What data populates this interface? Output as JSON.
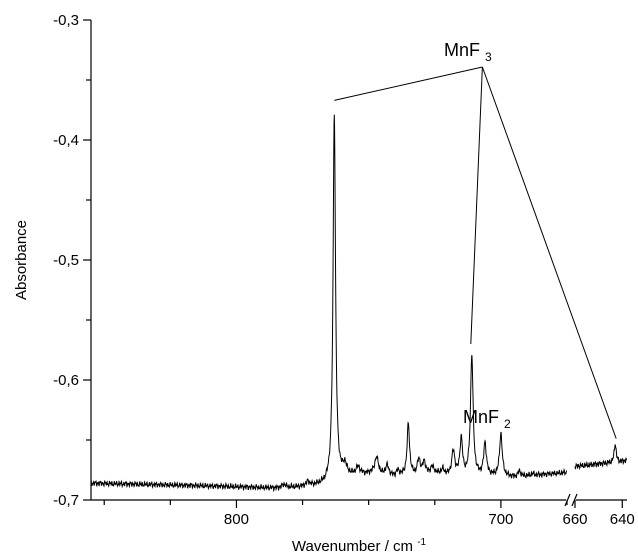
{
  "chart_data": {
    "type": "line",
    "title": "",
    "xlabel": "Wavenumber / cm",
    "xlabel_superscript": "-1",
    "ylabel": "Absorbance",
    "x_reversed": true,
    "x_break": {
      "from": 675,
      "to": 660
    },
    "xlim": [
      855,
      638
    ],
    "ylim": [
      -0.7,
      -0.3
    ],
    "xticks": [
      {
        "value": 800,
        "label": "800"
      },
      {
        "value": 700,
        "label": "700"
      },
      {
        "value": 660,
        "label": "660"
      },
      {
        "value": 640,
        "label": "640"
      }
    ],
    "xticks_minor": [
      850,
      825,
      775,
      750,
      725,
      675
    ],
    "yticks": [
      {
        "value": -0.3,
        "label": "-0,3"
      },
      {
        "value": -0.4,
        "label": "-0,4"
      },
      {
        "value": -0.5,
        "label": "-0,5"
      },
      {
        "value": -0.6,
        "label": "-0,6"
      },
      {
        "value": -0.7,
        "label": "-0,7"
      }
    ],
    "yticks_minor": [
      -0.35,
      -0.45,
      -0.55,
      -0.65
    ],
    "series": [
      {
        "baseline": [
          [
            855,
            -0.686
          ],
          [
            835,
            -0.687
          ],
          [
            815,
            -0.688
          ],
          [
            800,
            -0.689
          ],
          [
            785,
            -0.69
          ],
          [
            775,
            -0.689
          ],
          [
            770,
            -0.688
          ],
          [
            766,
            -0.687
          ],
          [
            763,
            -0.684
          ],
          [
            760,
            -0.681
          ],
          [
            755,
            -0.679
          ],
          [
            750,
            -0.678
          ],
          [
            745,
            -0.68
          ],
          [
            740,
            -0.681
          ],
          [
            735,
            -0.679
          ],
          [
            730,
            -0.681
          ],
          [
            725,
            -0.678
          ],
          [
            720,
            -0.68
          ],
          [
            715,
            -0.681
          ],
          [
            710,
            -0.681
          ],
          [
            705,
            -0.68
          ],
          [
            700,
            -0.68
          ],
          [
            695,
            -0.681
          ],
          [
            690,
            -0.68
          ],
          [
            685,
            -0.679
          ],
          [
            680,
            -0.678
          ],
          [
            675,
            -0.677
          ],
          [
            660,
            -0.672
          ],
          [
            655,
            -0.671
          ],
          [
            650,
            -0.67
          ],
          [
            645,
            -0.669
          ],
          [
            640,
            -0.668
          ],
          [
            638,
            -0.667
          ]
        ],
        "peaks": [
          [
            782,
            -0.687,
            0.8
          ],
          [
            773,
            -0.685,
            0.8
          ],
          [
            763,
            -0.377,
            0.55
          ],
          [
            759,
            -0.672,
            0.8
          ],
          [
            754,
            -0.673,
            0.8
          ],
          [
            751,
            -0.679,
            0.7
          ],
          [
            747,
            -0.665,
            0.9
          ],
          [
            743,
            -0.672,
            0.8
          ],
          [
            739,
            -0.676,
            0.7
          ],
          [
            735,
            -0.637,
            0.55
          ],
          [
            731,
            -0.667,
            0.7
          ],
          [
            729,
            -0.669,
            0.7
          ],
          [
            726,
            -0.673,
            0.7
          ],
          [
            722,
            -0.675,
            0.7
          ],
          [
            718,
            -0.66,
            0.7
          ],
          [
            715,
            -0.65,
            0.6
          ],
          [
            711,
            -0.58,
            0.6
          ],
          [
            706,
            -0.653,
            0.6
          ],
          [
            700,
            -0.645,
            0.6
          ],
          [
            693,
            -0.676,
            0.6
          ],
          [
            688,
            -0.678,
            0.6
          ],
          [
            643,
            -0.653,
            0.5
          ]
        ]
      }
    ],
    "annotations": [
      {
        "text": "MnF",
        "subscript": "3"
      },
      {
        "text": "MnF",
        "subscript": "2"
      }
    ]
  }
}
